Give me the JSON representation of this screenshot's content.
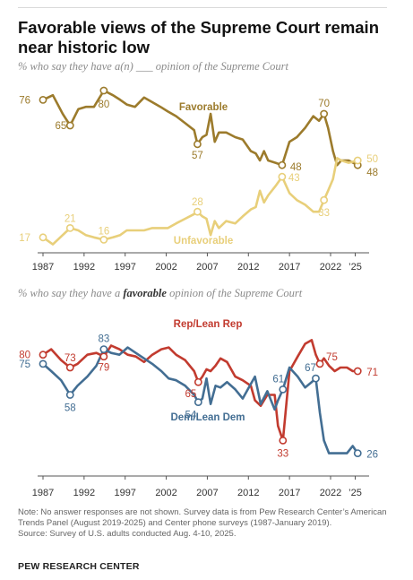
{
  "title": "Favorable views of the Supreme Court remain near historic low",
  "chart_data": [
    {
      "type": "line",
      "subtitle": "% who say they have a(n) ___ opinion of the Supreme Court",
      "x_ticks": [
        "1987",
        "1992",
        "1997",
        "2002",
        "2007",
        "2012",
        "2017",
        "2022",
        "’25"
      ],
      "xlim": [
        1987,
        2025.6
      ],
      "ylim": [
        10,
        85
      ],
      "series": [
        {
          "name": "Favorable",
          "color": "#9c7b2c",
          "x": [
            1987.0,
            1988.2,
            1989.4,
            1990.3,
            1991.3,
            1992.2,
            1993.2,
            1994.4,
            1995.5,
            1996.4,
            1997.2,
            1998.2,
            1999.3,
            2000.3,
            2001.3,
            2002.2,
            2003.2,
            2004.3,
            2005.4,
            2005.8,
            2006.4,
            2006.9,
            2007.4,
            2007.9,
            2008.4,
            2009.3,
            2010.4,
            2011.3,
            2012.3,
            2012.9,
            2013.4,
            2013.9,
            2014.4,
            2015.3,
            2016.1,
            2017.0,
            2017.9,
            2018.9,
            2019.9,
            2020.6,
            2021.2,
            2021.7,
            2022.3,
            2022.8,
            2023.3,
            2024.2,
            2025.3
          ],
          "values": [
            76,
            78,
            70,
            65,
            72,
            73,
            73,
            80,
            78,
            76,
            74,
            73,
            77,
            75,
            73,
            71,
            69,
            66,
            63,
            57,
            60,
            61,
            70,
            58,
            62,
            62,
            60,
            59,
            54,
            53,
            50,
            54,
            50,
            49,
            48,
            58,
            60,
            64,
            69,
            67,
            70,
            64,
            54,
            48,
            50,
            50,
            48
          ],
          "labels": [
            {
              "index": 0,
              "text": "76"
            },
            {
              "index": 3,
              "text": "65"
            },
            {
              "index": 7,
              "text": "80"
            },
            {
              "index": 19,
              "text": "57"
            },
            {
              "index": 34,
              "text": "48"
            },
            {
              "index": 40,
              "text": "70"
            },
            {
              "index": 46,
              "text": "48"
            }
          ]
        },
        {
          "name": "Unfavorable",
          "color": "#e8cf7a",
          "x": [
            1987.0,
            1988.2,
            1989.4,
            1990.3,
            1991.3,
            1992.2,
            1993.2,
            1994.4,
            1995.5,
            1996.4,
            1997.2,
            1998.2,
            1999.3,
            2000.3,
            2001.3,
            2002.2,
            2003.2,
            2004.3,
            2005.4,
            2005.8,
            2006.4,
            2006.9,
            2007.4,
            2007.9,
            2008.4,
            2009.3,
            2010.4,
            2011.3,
            2012.3,
            2012.9,
            2013.4,
            2013.9,
            2014.4,
            2015.3,
            2016.1,
            2017.0,
            2017.9,
            2018.9,
            2019.9,
            2020.6,
            2021.2,
            2021.7,
            2022.3,
            2022.8,
            2023.3,
            2024.2,
            2025.3
          ],
          "values": [
            17,
            14,
            18,
            21,
            20,
            18,
            17,
            16,
            17,
            18,
            20,
            20,
            20,
            21,
            21,
            21,
            23,
            25,
            27,
            28,
            26,
            25,
            18,
            24,
            21,
            24,
            23,
            26,
            29,
            30,
            37,
            32,
            35,
            39,
            43,
            36,
            33,
            31,
            28,
            28,
            33,
            37,
            42,
            51,
            50,
            49,
            50
          ],
          "labels": [
            {
              "index": 0,
              "text": "17"
            },
            {
              "index": 3,
              "text": "21"
            },
            {
              "index": 7,
              "text": "16"
            },
            {
              "index": 19,
              "text": "28"
            },
            {
              "index": 34,
              "text": "43"
            },
            {
              "index": 40,
              "text": "33"
            },
            {
              "index": 46,
              "text": "50"
            }
          ]
        }
      ]
    },
    {
      "type": "line",
      "subtitle_pre": "% who say they have a ",
      "subtitle_bold": "favorable",
      "subtitle_post": " opinion of the Supreme Court",
      "x_ticks": [
        "1987",
        "1992",
        "1997",
        "2002",
        "2007",
        "2012",
        "2017",
        "2022",
        "’25"
      ],
      "xlim": [
        1987,
        2025.6
      ],
      "ylim": [
        15,
        100
      ],
      "series": [
        {
          "name": "Rep/Lean Rep",
          "color": "#c23b2f",
          "x": [
            1987.0,
            1988.0,
            1989.2,
            1990.3,
            1991.2,
            1992.4,
            1993.5,
            1994.4,
            1995.3,
            1996.3,
            1997.3,
            1998.3,
            1999.3,
            2000.3,
            2001.4,
            2002.3,
            2003.2,
            2004.3,
            2005.4,
            2005.9,
            2006.4,
            2006.9,
            2007.4,
            2008.0,
            2008.6,
            2009.4,
            2010.4,
            2011.3,
            2012.3,
            2012.8,
            2013.5,
            2014.3,
            2015.2,
            2015.6,
            2016.2,
            2017.0,
            2018.0,
            2018.9,
            2019.7,
            2020.2,
            2020.7,
            2021.2,
            2021.8,
            2022.5,
            2023.2,
            2024.0,
            2024.7,
            2025.3
          ],
          "values": [
            80,
            83,
            77,
            73,
            75,
            80,
            81,
            79,
            85,
            83,
            80,
            79,
            76,
            80,
            83,
            84,
            80,
            77,
            71,
            65,
            68,
            72,
            71,
            74,
            78,
            76,
            68,
            66,
            63,
            55,
            52,
            58,
            58,
            41,
            33,
            71,
            79,
            86,
            88,
            80,
            75,
            78,
            74,
            71,
            73,
            73,
            71,
            71
          ],
          "labels": [
            {
              "index": 0,
              "text": "80"
            },
            {
              "index": 3,
              "text": "73"
            },
            {
              "index": 7,
              "text": "79"
            },
            {
              "index": 19,
              "text": "65"
            },
            {
              "index": 34,
              "text": "33"
            },
            {
              "index": 40,
              "text": "75"
            },
            {
              "index": 47,
              "text": "71"
            }
          ]
        },
        {
          "name": "Dem/Lean Dem",
          "color": "#436e93",
          "x": [
            1987.0,
            1988.0,
            1989.2,
            1990.3,
            1991.2,
            1992.4,
            1993.5,
            1994.4,
            1995.3,
            1996.3,
            1997.3,
            1998.3,
            1999.3,
            2000.3,
            2001.4,
            2002.3,
            2003.2,
            2004.3,
            2005.4,
            2005.9,
            2006.4,
            2006.9,
            2007.4,
            2008.0,
            2008.6,
            2009.4,
            2010.4,
            2011.3,
            2012.3,
            2012.8,
            2013.5,
            2014.3,
            2015.2,
            2015.6,
            2016.2,
            2017.0,
            2018.0,
            2018.9,
            2019.7,
            2020.2,
            2020.7,
            2021.2,
            2021.8,
            2022.5,
            2023.2,
            2024.0,
            2024.7,
            2025.3
          ],
          "values": [
            75,
            71,
            66,
            58,
            63,
            68,
            74,
            83,
            81,
            80,
            84,
            81,
            78,
            75,
            71,
            67,
            66,
            63,
            58,
            54,
            56,
            67,
            53,
            63,
            62,
            65,
            61,
            56,
            64,
            68,
            53,
            60,
            50,
            55,
            61,
            73,
            68,
            62,
            65,
            67,
            48,
            33,
            26,
            26,
            26,
            26,
            30,
            26
          ],
          "labels": [
            {
              "index": 0,
              "text": "75"
            },
            {
              "index": 3,
              "text": "58"
            },
            {
              "index": 7,
              "text": "83"
            },
            {
              "index": 19,
              "text": "54"
            },
            {
              "index": 34,
              "text": "61"
            },
            {
              "index": 39,
              "text": "67"
            },
            {
              "index": 47,
              "text": "26"
            }
          ]
        }
      ]
    }
  ],
  "note": "Note: No answer responses are not shown. Survey data is from Pew Research Center’s American Trends Panel (August 2019-2025) and Center phone surveys (1987-January 2019).",
  "source": "Source: Survey of U.S. adults conducted Aug. 4-10, 2025.",
  "brand": "PEW RESEARCH CENTER"
}
